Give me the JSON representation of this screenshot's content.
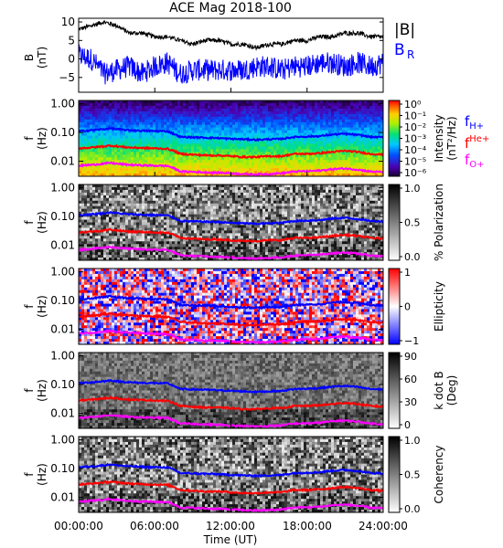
{
  "title": "ACE Mag 2018-100",
  "time_axis": {
    "label": "Time (UT)",
    "range_hours": [
      0,
      24
    ],
    "ticks": [
      {
        "hour": 0,
        "label": "00:00:00"
      },
      {
        "hour": 6,
        "label": "06:00:00"
      },
      {
        "hour": 12,
        "label": "12:00:00"
      },
      {
        "hour": 18,
        "label": "18:00:00"
      },
      {
        "hour": 24,
        "label": "24:00:00"
      }
    ]
  },
  "colors": {
    "B_total": "#000000",
    "B_R": "#0000ff",
    "f_H": "#0000ff",
    "f_He": "#ff0000",
    "f_O": "#ff00ff"
  },
  "legend_B": {
    "total": "|B|",
    "radial": "B",
    "radial_sub": "R"
  },
  "legend_f": [
    {
      "main": "f",
      "sub": "H+",
      "color": "#0000ff"
    },
    {
      "main": "f",
      "sup": "He+",
      "color": "#ff0000"
    },
    {
      "main": "f",
      "sub": "O+",
      "color": "#ff00ff"
    }
  ],
  "freq_ticks": [
    "1.00",
    "0.10",
    "0.01"
  ],
  "chart_data": [
    {
      "type": "line",
      "panel": "B",
      "ylabel": "B",
      "yunit": "(nT)",
      "ylim": [
        -9,
        11
      ],
      "yticks": [
        10,
        5,
        0,
        -5
      ],
      "series": [
        {
          "name": "|B|",
          "x_hours": [
            0,
            1,
            2,
            3,
            4,
            5,
            6,
            7,
            8,
            9,
            10,
            11,
            12,
            13,
            14,
            15,
            16,
            17,
            18,
            19,
            20,
            21,
            22,
            23,
            24
          ],
          "values": [
            8,
            9,
            10,
            9,
            7,
            7,
            6,
            6,
            5,
            4,
            5,
            5,
            4,
            4,
            3,
            4,
            4,
            5,
            5,
            6,
            6,
            7,
            7,
            6,
            6
          ]
        },
        {
          "name": "B_R",
          "x_hours": [
            0,
            1,
            2,
            3,
            4,
            5,
            6,
            7,
            8,
            9,
            10,
            11,
            12,
            13,
            14,
            15,
            16,
            17,
            18,
            19,
            20,
            21,
            22,
            23,
            24
          ],
          "values": [
            1,
            0,
            -4,
            -3,
            -2,
            -4,
            -2,
            -1,
            -4,
            -3,
            -3,
            -3,
            -3,
            -3,
            -2,
            -2,
            -3,
            -2,
            -2,
            -1,
            -1,
            -2,
            -1,
            -2,
            -1
          ]
        }
      ]
    },
    {
      "type": "heatmap",
      "panel": "intensity",
      "ylabel": "f",
      "yunit": "(Hz)",
      "colorbar_label": "Intensity",
      "colorbar_unit": "(nT²/Hz)",
      "colorbar_ticks": [
        "10⁰",
        "10⁻¹",
        "10⁻²",
        "10⁻³",
        "10⁻⁴",
        "10⁻⁵",
        "10⁻⁶"
      ],
      "colormap": "rainbow"
    },
    {
      "type": "heatmap",
      "panel": "polarization",
      "ylabel": "f",
      "yunit": "(Hz)",
      "colorbar_label": "% Polarization",
      "colorbar_ticks": [
        "1.0",
        "0.5",
        "0.0"
      ],
      "colormap": "gray"
    },
    {
      "type": "heatmap",
      "panel": "ellipticity",
      "ylabel": "f",
      "yunit": "(Hz)",
      "colorbar_label": "Ellipticity",
      "colorbar_ticks": [
        "1",
        "0",
        "−1"
      ],
      "colormap": "bwr"
    },
    {
      "type": "heatmap",
      "panel": "kdotb",
      "ylabel": "f",
      "yunit": "(Hz)",
      "colorbar_label": "k dot B",
      "colorbar_unit": "(Deg)",
      "colorbar_ticks": [
        "90",
        "60",
        "30",
        "0"
      ],
      "colormap": "gray"
    },
    {
      "type": "heatmap",
      "panel": "coherency",
      "ylabel": "f",
      "yunit": "(Hz)",
      "colorbar_label": "Coherency",
      "colorbar_ticks": [
        "1.0",
        "0.5",
        "0.0"
      ],
      "colormap": "gray"
    }
  ],
  "gyrofrequencies": {
    "x_hours": [
      0,
      1,
      2,
      2.5,
      3,
      4,
      5,
      6,
      7,
      7.5,
      8,
      9,
      10,
      11,
      12,
      13,
      14,
      15,
      16,
      17,
      18,
      19,
      20,
      21,
      22,
      23,
      24
    ],
    "f_H": [
      0.11,
      0.12,
      0.13,
      0.14,
      0.13,
      0.12,
      0.115,
      0.112,
      0.11,
      0.09,
      0.07,
      0.068,
      0.066,
      0.064,
      0.06,
      0.058,
      0.056,
      0.058,
      0.06,
      0.07,
      0.072,
      0.075,
      0.085,
      0.09,
      0.082,
      0.07,
      0.068
    ],
    "f_He": [
      0.028,
      0.03,
      0.033,
      0.035,
      0.033,
      0.03,
      0.029,
      0.028,
      0.027,
      0.023,
      0.018,
      0.017,
      0.016,
      0.016,
      0.015,
      0.014,
      0.014,
      0.015,
      0.015,
      0.018,
      0.018,
      0.019,
      0.021,
      0.023,
      0.021,
      0.018,
      0.017
    ],
    "f_O": [
      0.007,
      0.0075,
      0.0082,
      0.0088,
      0.0082,
      0.0075,
      0.0072,
      0.007,
      0.0069,
      0.0057,
      0.0044,
      0.0043,
      0.0041,
      0.004,
      0.0038,
      0.0036,
      0.0035,
      0.0036,
      0.0038,
      0.0044,
      0.0045,
      0.0047,
      0.0053,
      0.0056,
      0.0051,
      0.0044,
      0.0042
    ]
  }
}
